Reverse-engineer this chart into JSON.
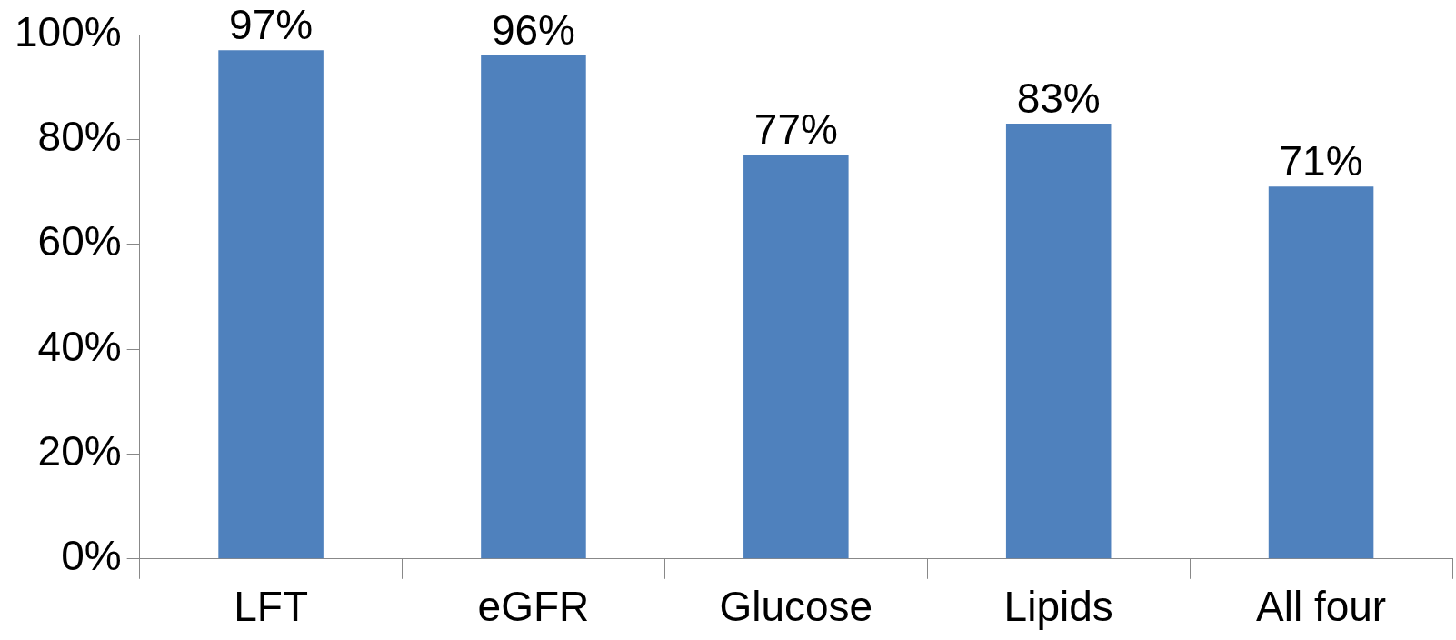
{
  "chart_data": {
    "type": "bar",
    "categories": [
      "LFT",
      "eGFR",
      "Glucose",
      "Lipids",
      "All four"
    ],
    "values": [
      97,
      96,
      77,
      83,
      71
    ],
    "color": "#4f81bd",
    "value_labels": [
      "97%",
      "96%",
      "77%",
      "83%",
      "71%"
    ],
    "ylim": [
      0,
      100
    ],
    "yticks": [
      {
        "value": 0,
        "label": "0%"
      },
      {
        "value": 20,
        "label": "20%"
      },
      {
        "value": 40,
        "label": "40%"
      },
      {
        "value": 60,
        "label": "60%"
      },
      {
        "value": 80,
        "label": "80%"
      },
      {
        "value": 100,
        "label": "100%"
      }
    ],
    "grid": false,
    "legend": false
  }
}
